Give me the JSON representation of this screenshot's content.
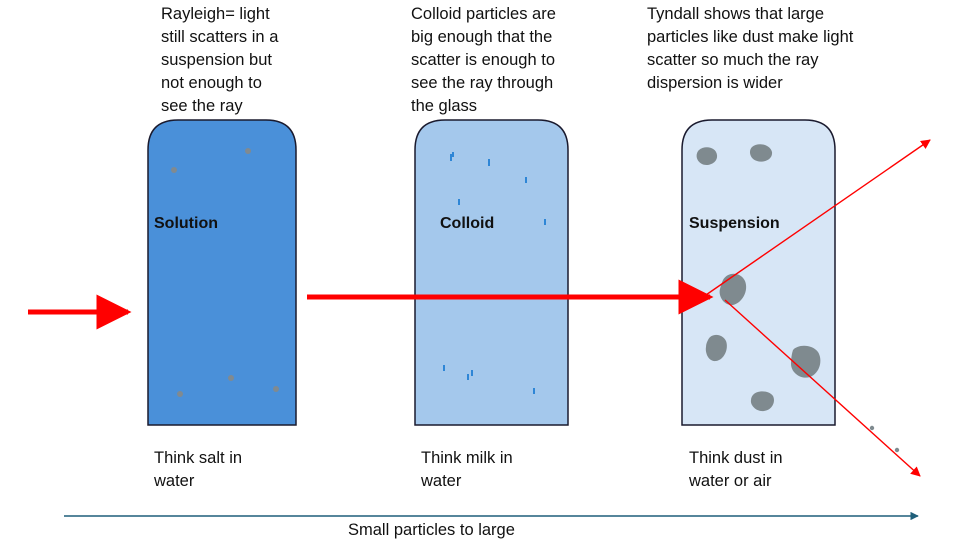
{
  "captions": {
    "solution": "Rayleigh= light\nstill scatters in a\nsuspension but\nnot enough to\nsee the ray",
    "colloid": "Colloid particles are\nbig enough that the\nscatter is enough to\nsee the ray through\nthe glass",
    "suspension": "Tyndall shows that large\nparticles like dust make light\nscatter so much the ray\ndispersion is wider"
  },
  "containers": {
    "solution": {
      "label": "Solution",
      "color": "#4a90d9"
    },
    "colloid": {
      "label": "Colloid",
      "color": "#a4c8ec"
    },
    "suspension": {
      "label": "Suspension",
      "color": "#d7e6f6"
    }
  },
  "footnotes": {
    "solution": "Think salt in\nwater",
    "colloid": "Think milk in\nwater",
    "suspension": "Think dust in\nwater or air"
  },
  "axis": {
    "label": "Small particles to large",
    "color": "#1f5f7a"
  },
  "colors": {
    "beam": "#ff0000",
    "outline": "#1a1a2e",
    "particle": "#808a90",
    "colloid_particle": "#2e86d6"
  }
}
